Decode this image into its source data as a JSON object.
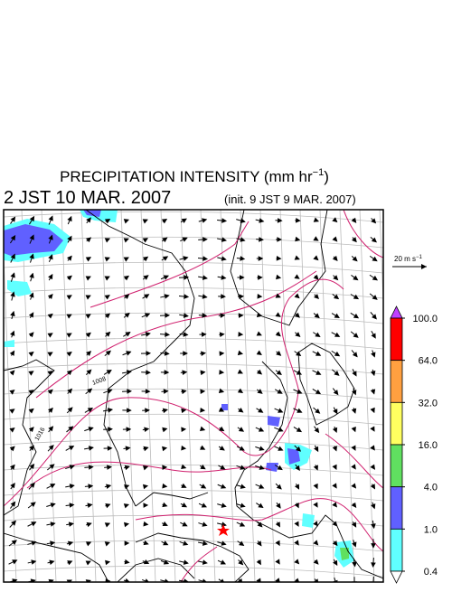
{
  "title": {
    "text": "PRECIPITATION INTENSITY (mm hr",
    "sup": "−1",
    "close": ")"
  },
  "valid_time": "2 JST 10 MAR. 2007",
  "init_time": "(init. 9 JST 9 MAR. 2007)",
  "reference_vector": {
    "text": "20 m s",
    "sup": "−1"
  },
  "isobar_labels": [
    "1008",
    "1016"
  ],
  "colorbar": {
    "ticks": [
      {
        "value": 100,
        "label": "100.0"
      },
      {
        "value": 64,
        "label": "64.0"
      },
      {
        "value": 32,
        "label": "32.0"
      },
      {
        "value": 16,
        "label": "16.0"
      },
      {
        "value": 4,
        "label": "4.0"
      },
      {
        "value": 1,
        "label": "1.0"
      },
      {
        "value": 0.4,
        "label": "0.4"
      }
    ],
    "colors": [
      "#ff0000",
      "#ffa040",
      "#ffff60",
      "#60e060",
      "#6060ff",
      "#60ffff"
    ],
    "over_color": "#c040ff",
    "under_color": "#ffffff"
  }
}
